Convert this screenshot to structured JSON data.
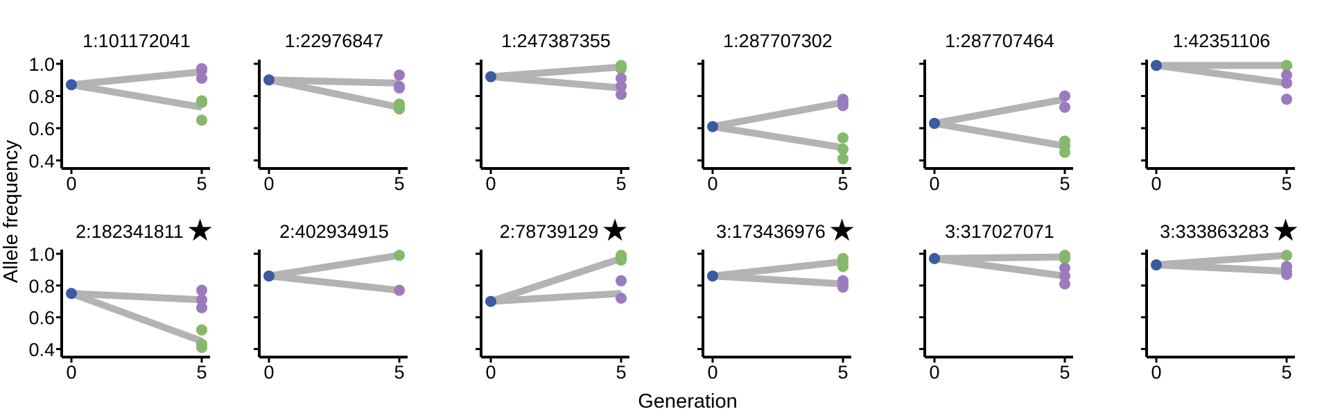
{
  "figure": {
    "ylabel": "Allele frequency",
    "xlabel": "Generation"
  },
  "colors": {
    "generation0": "#3a5ba0",
    "purple": "#9b7bbd",
    "green": "#86b86a",
    "line": "#b3b3b3",
    "axis": "#000000",
    "star": "#000000"
  },
  "chart_data": [
    {
      "type": "line",
      "title": "1:101172041",
      "starred": false,
      "x": [
        0,
        5
      ],
      "ylim": [
        0.38,
        1.0
      ],
      "yticks": [
        1.0,
        0.8,
        0.6,
        0.4
      ],
      "xticks": [
        0,
        5
      ],
      "gen0": 0.87,
      "line_ends": [
        0.95,
        0.73
      ],
      "purple": [
        0.97,
        0.96,
        0.91
      ],
      "green": [
        0.77,
        0.76,
        0.65
      ]
    },
    {
      "type": "line",
      "title": "1:22976847",
      "starred": false,
      "x": [
        0,
        5
      ],
      "ylim": [
        0.38,
        1.0
      ],
      "yticks": [
        1.0,
        0.8,
        0.6,
        0.4
      ],
      "xticks": [
        0,
        5
      ],
      "gen0": 0.9,
      "line_ends": [
        0.88,
        0.73
      ],
      "purple": [
        0.93,
        0.86,
        0.85
      ],
      "green": [
        0.75,
        0.74,
        0.72
      ]
    },
    {
      "type": "line",
      "title": "1:247387355",
      "starred": false,
      "x": [
        0,
        5
      ],
      "ylim": [
        0.38,
        1.0
      ],
      "yticks": [
        1.0,
        0.8,
        0.6,
        0.4
      ],
      "xticks": [
        0,
        5
      ],
      "gen0": 0.92,
      "line_ends": [
        0.98,
        0.85
      ],
      "purple": [
        0.91,
        0.86,
        0.81
      ],
      "green": [
        0.99,
        0.98,
        0.97
      ]
    },
    {
      "type": "line",
      "title": "1:287707302",
      "starred": false,
      "x": [
        0,
        5
      ],
      "ylim": [
        0.38,
        1.0
      ],
      "yticks": [
        1.0,
        0.8,
        0.6,
        0.4
      ],
      "xticks": [
        0,
        5
      ],
      "gen0": 0.61,
      "line_ends": [
        0.76,
        0.48
      ],
      "purple": [
        0.78,
        0.76,
        0.74
      ],
      "green": [
        0.54,
        0.47,
        0.41
      ]
    },
    {
      "type": "line",
      "title": "1:287707464",
      "starred": false,
      "x": [
        0,
        5
      ],
      "ylim": [
        0.38,
        1.0
      ],
      "yticks": [
        1.0,
        0.8,
        0.6,
        0.4
      ],
      "xticks": [
        0,
        5
      ],
      "gen0": 0.63,
      "line_ends": [
        0.78,
        0.49
      ],
      "purple": [
        0.8,
        0.73
      ],
      "green": [
        0.52,
        0.49,
        0.45
      ]
    },
    {
      "type": "line",
      "title": "1:42351106",
      "starred": false,
      "x": [
        0,
        5
      ],
      "ylim": [
        0.38,
        1.0
      ],
      "yticks": [
        1.0,
        0.8,
        0.6,
        0.4
      ],
      "xticks": [
        0,
        5
      ],
      "gen0": 0.99,
      "line_ends": [
        0.99,
        0.88
      ],
      "purple": [
        0.93,
        0.88,
        0.78
      ],
      "green": [
        0.99,
        0.99
      ]
    },
    {
      "type": "line",
      "title": "2:182341811",
      "starred": true,
      "x": [
        0,
        5
      ],
      "ylim": [
        0.38,
        1.0
      ],
      "yticks": [
        1.0,
        0.8,
        0.6,
        0.4
      ],
      "xticks": [
        0,
        5
      ],
      "gen0": 0.75,
      "line_ends": [
        0.71,
        0.45
      ],
      "purple": [
        0.77,
        0.71,
        0.66
      ],
      "green": [
        0.52,
        0.43,
        0.41
      ]
    },
    {
      "type": "line",
      "title": "2:402934915",
      "starred": false,
      "x": [
        0,
        5
      ],
      "ylim": [
        0.38,
        1.0
      ],
      "yticks": [
        1.0,
        0.8,
        0.6,
        0.4
      ],
      "xticks": [
        0,
        5
      ],
      "gen0": 0.86,
      "line_ends": [
        0.99,
        0.77
      ],
      "purple": [
        0.77
      ],
      "green": [
        0.99
      ]
    },
    {
      "type": "line",
      "title": "2:78739129",
      "starred": true,
      "x": [
        0,
        5
      ],
      "ylim": [
        0.38,
        1.0
      ],
      "yticks": [
        1.0,
        0.8,
        0.6,
        0.4
      ],
      "xticks": [
        0,
        5
      ],
      "gen0": 0.7,
      "line_ends": [
        0.97,
        0.75
      ],
      "purple": [
        0.83,
        0.72
      ],
      "green": [
        0.99,
        0.97,
        0.96
      ]
    },
    {
      "type": "line",
      "title": "3:173436976",
      "starred": true,
      "x": [
        0,
        5
      ],
      "ylim": [
        0.38,
        1.0
      ],
      "yticks": [
        1.0,
        0.8,
        0.6,
        0.4
      ],
      "xticks": [
        0,
        5
      ],
      "gen0": 0.86,
      "line_ends": [
        0.95,
        0.81
      ],
      "purple": [
        0.83,
        0.81,
        0.79
      ],
      "green": [
        0.97,
        0.95,
        0.92
      ]
    },
    {
      "type": "line",
      "title": "3:317027071",
      "starred": false,
      "x": [
        0,
        5
      ],
      "ylim": [
        0.38,
        1.0
      ],
      "yticks": [
        1.0,
        0.8,
        0.6,
        0.4
      ],
      "xticks": [
        0,
        5
      ],
      "gen0": 0.97,
      "line_ends": [
        0.98,
        0.86
      ],
      "purple": [
        0.91,
        0.86,
        0.81
      ],
      "green": [
        0.99,
        0.98,
        0.97
      ]
    },
    {
      "type": "line",
      "title": "3:333863283",
      "starred": true,
      "x": [
        0,
        5
      ],
      "ylim": [
        0.38,
        1.0
      ],
      "yticks": [
        1.0,
        0.8,
        0.6,
        0.4
      ],
      "xticks": [
        0,
        5
      ],
      "gen0": 0.93,
      "line_ends": [
        0.99,
        0.89
      ],
      "purple": [
        0.92,
        0.89,
        0.87
      ],
      "green": [
        0.99
      ]
    }
  ]
}
